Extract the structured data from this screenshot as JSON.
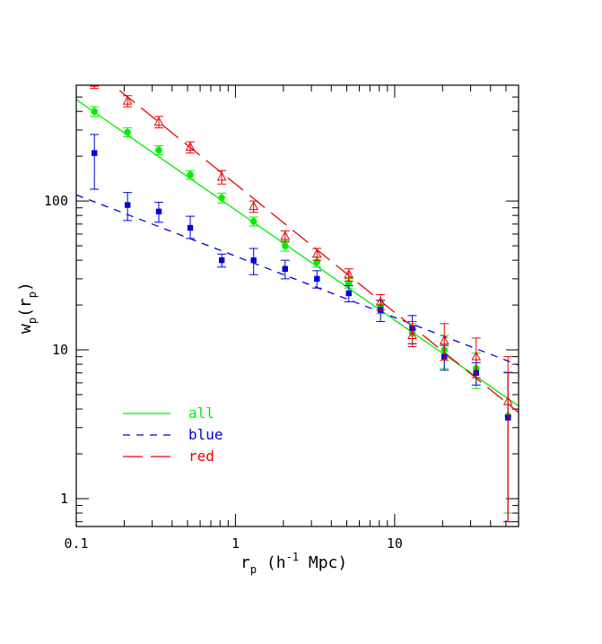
{
  "chart_data": {
    "type": "scatter",
    "xscale": "log",
    "yscale": "log",
    "xlim": [
      0.1,
      60
    ],
    "ylim": [
      0.65,
      600
    ],
    "x_ticks": [
      {
        "value": 0.1,
        "label": "0.1"
      },
      {
        "value": 1,
        "label": "1"
      },
      {
        "value": 10,
        "label": "10"
      }
    ],
    "y_ticks": [
      {
        "value": 1,
        "label": "1"
      },
      {
        "value": 10,
        "label": "10"
      },
      {
        "value": 100,
        "label": "100"
      }
    ],
    "xlabel": {
      "main": "r",
      "sub": "p",
      "rest": " (h",
      "sup": "-1",
      "tail": " Mpc)"
    },
    "ylabel": {
      "main": "w",
      "sub": "p",
      "paren_open": "(r",
      "sub2": "p",
      "paren_close": ")"
    },
    "legend_position": "bottom-left",
    "series": [
      {
        "name": "all",
        "color": "#00ee00",
        "marker": "circle",
        "line_style": "solid",
        "fit": {
          "x": [
            0.1,
            60
          ],
          "y": [
            480,
            4.2
          ]
        },
        "points": [
          {
            "x": 0.13,
            "y": 400,
            "err_lo": 30,
            "err_hi": 30
          },
          {
            "x": 0.21,
            "y": 290,
            "err_lo": 20,
            "err_hi": 20
          },
          {
            "x": 0.33,
            "y": 220,
            "err_lo": 15,
            "err_hi": 15
          },
          {
            "x": 0.52,
            "y": 150,
            "err_lo": 10,
            "err_hi": 10
          },
          {
            "x": 0.82,
            "y": 105,
            "err_lo": 8,
            "err_hi": 8
          },
          {
            "x": 1.3,
            "y": 73,
            "err_lo": 5,
            "err_hi": 5
          },
          {
            "x": 2.05,
            "y": 50,
            "err_lo": 4,
            "err_hi": 4
          },
          {
            "x": 3.25,
            "y": 39,
            "err_lo": 3,
            "err_hi": 3
          },
          {
            "x": 5.15,
            "y": 28,
            "err_lo": 2,
            "err_hi": 2
          },
          {
            "x": 8.15,
            "y": 19.5,
            "err_lo": 2,
            "err_hi": 2
          },
          {
            "x": 12.9,
            "y": 13,
            "err_lo": 2,
            "err_hi": 2
          },
          {
            "x": 20.5,
            "y": 10,
            "err_lo": 2.5,
            "err_hi": 2.5
          },
          {
            "x": 32.5,
            "y": 7.5,
            "err_lo": 2,
            "err_hi": 2
          },
          {
            "x": 51.5,
            "y": 3.6,
            "err_lo": 2.8,
            "err_hi": 3.5
          }
        ]
      },
      {
        "name": "blue",
        "color": "#0000dd",
        "marker": "square",
        "line_style": "dashed",
        "fit": {
          "x": [
            0.1,
            60
          ],
          "y": [
            110,
            7.9
          ]
        },
        "points": [
          {
            "x": 0.13,
            "y": 210,
            "err_lo": 90,
            "err_hi": 70
          },
          {
            "x": 0.21,
            "y": 94,
            "err_lo": 20,
            "err_hi": 20
          },
          {
            "x": 0.33,
            "y": 85,
            "err_lo": 13,
            "err_hi": 13
          },
          {
            "x": 0.52,
            "y": 66,
            "err_lo": 10,
            "err_hi": 13
          },
          {
            "x": 0.82,
            "y": 40,
            "err_lo": 4,
            "err_hi": 4
          },
          {
            "x": 1.3,
            "y": 40,
            "err_lo": 8,
            "err_hi": 8
          },
          {
            "x": 2.05,
            "y": 35,
            "err_lo": 5,
            "err_hi": 5
          },
          {
            "x": 3.25,
            "y": 30,
            "err_lo": 4,
            "err_hi": 4
          },
          {
            "x": 5.15,
            "y": 24,
            "err_lo": 3,
            "err_hi": 3
          },
          {
            "x": 8.15,
            "y": 18.5,
            "err_lo": 3,
            "err_hi": 3
          },
          {
            "x": 12.9,
            "y": 14,
            "err_lo": 3,
            "err_hi": 3
          },
          {
            "x": 20.5,
            "y": 9,
            "err_lo": 1.7,
            "err_hi": 1.7
          },
          {
            "x": 32.5,
            "y": 7,
            "err_lo": 1.2,
            "err_hi": 1.2
          },
          {
            "x": 51.5,
            "y": 3.5,
            "err_lo": 2.8,
            "err_hi": 3.5
          }
        ]
      },
      {
        "name": "red",
        "color": "#ee0000",
        "marker": "triangle-open",
        "line_style": "longdash",
        "fit": {
          "x": [
            0.1,
            60
          ],
          "y": [
            950,
            3.8
          ]
        },
        "points": [
          {
            "x": 0.13,
            "y": 620,
            "err_lo": 50,
            "err_hi": 50
          },
          {
            "x": 0.21,
            "y": 470,
            "err_lo": 40,
            "err_hi": 40
          },
          {
            "x": 0.33,
            "y": 340,
            "err_lo": 30,
            "err_hi": 30
          },
          {
            "x": 0.52,
            "y": 230,
            "err_lo": 20,
            "err_hi": 20
          },
          {
            "x": 0.82,
            "y": 145,
            "err_lo": 15,
            "err_hi": 15
          },
          {
            "x": 1.3,
            "y": 92,
            "err_lo": 8,
            "err_hi": 8
          },
          {
            "x": 2.05,
            "y": 58,
            "err_lo": 5,
            "err_hi": 5
          },
          {
            "x": 3.25,
            "y": 44,
            "err_lo": 4,
            "err_hi": 4
          },
          {
            "x": 5.15,
            "y": 32,
            "err_lo": 3,
            "err_hi": 3
          },
          {
            "x": 8.15,
            "y": 21,
            "err_lo": 2.5,
            "err_hi": 2.5
          },
          {
            "x": 12.9,
            "y": 12.5,
            "err_lo": 2,
            "err_hi": 3
          },
          {
            "x": 20.5,
            "y": 11.5,
            "err_lo": 3,
            "err_hi": 3.5
          },
          {
            "x": 32.5,
            "y": 9,
            "err_lo": 2.5,
            "err_hi": 3
          },
          {
            "x": 51.5,
            "y": 4.5,
            "err_lo": 3.8,
            "err_hi": 4.5
          }
        ]
      }
    ]
  }
}
